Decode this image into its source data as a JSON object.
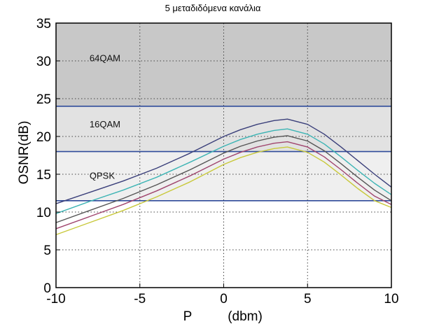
{
  "chart_data": {
    "type": "line",
    "title": "5 μεταδιδόμενα κανάλια",
    "xlabel": "P",
    "xlabel_unit": "(dbm)",
    "ylabel": "OSNR(dB)",
    "xlim": [
      -10,
      10
    ],
    "ylim": [
      0,
      35
    ],
    "xticks": [
      -10,
      -5,
      0,
      5,
      10
    ],
    "yticks": [
      0,
      5,
      10,
      15,
      20,
      25,
      30,
      35
    ],
    "grid": true,
    "bands": [
      {
        "label": "64QAM",
        "from": 24,
        "to": 35,
        "color": "#c8c8c8"
      },
      {
        "label": "16QAM",
        "from": 18,
        "to": 24,
        "color": "#e2e2e2"
      },
      {
        "label": "QPSK",
        "from": 11.5,
        "to": 18,
        "color": "#efefef"
      }
    ],
    "band_line_color": "#2f4b9a",
    "series": [
      {
        "color": "#3a3f7a",
        "x": [
          -10,
          -8,
          -6,
          -4,
          -2,
          0,
          1,
          2,
          3,
          3.8,
          5,
          6,
          7,
          8,
          9,
          10
        ],
        "y": [
          11.1,
          12.6,
          14.1,
          15.8,
          17.8,
          20.0,
          20.9,
          21.6,
          22.1,
          22.3,
          21.6,
          20.3,
          18.6,
          16.8,
          15.0,
          13.3
        ]
      },
      {
        "color": "#3cb4b4",
        "x": [
          -10,
          -8,
          -6,
          -4,
          -2,
          0,
          1,
          2,
          3,
          3.8,
          5,
          6,
          7,
          8,
          9,
          10
        ],
        "y": [
          9.8,
          11.4,
          12.9,
          14.6,
          16.6,
          18.7,
          19.6,
          20.3,
          20.8,
          21.0,
          20.3,
          19.0,
          17.3,
          15.5,
          13.8,
          12.3
        ]
      },
      {
        "color": "#555555",
        "x": [
          -10,
          -8,
          -6,
          -4,
          -2,
          0,
          1,
          2,
          3,
          3.8,
          5,
          6,
          7,
          8,
          9,
          10
        ],
        "y": [
          8.6,
          10.2,
          11.8,
          13.6,
          15.6,
          17.8,
          18.7,
          19.4,
          19.9,
          20.1,
          19.4,
          18.1,
          16.4,
          14.6,
          12.9,
          11.5
        ]
      },
      {
        "color": "#a0456e",
        "x": [
          -10,
          -8,
          -6,
          -4,
          -2,
          0,
          1,
          2,
          3,
          3.8,
          5,
          6,
          7,
          8,
          9,
          10
        ],
        "y": [
          7.8,
          9.4,
          11.0,
          12.8,
          14.8,
          17.0,
          17.9,
          18.6,
          19.1,
          19.3,
          18.6,
          17.3,
          15.6,
          13.8,
          12.1,
          11.0
        ]
      },
      {
        "color": "#c8c83a",
        "x": [
          -10,
          -8,
          -6,
          -4,
          -2,
          0,
          1,
          2,
          3,
          3.8,
          5,
          6,
          7,
          8,
          9,
          10
        ],
        "y": [
          7.0,
          8.6,
          10.2,
          12.0,
          14.0,
          16.3,
          17.2,
          17.9,
          18.4,
          18.6,
          17.9,
          16.6,
          14.9,
          13.1,
          11.5,
          10.6
        ]
      }
    ]
  }
}
